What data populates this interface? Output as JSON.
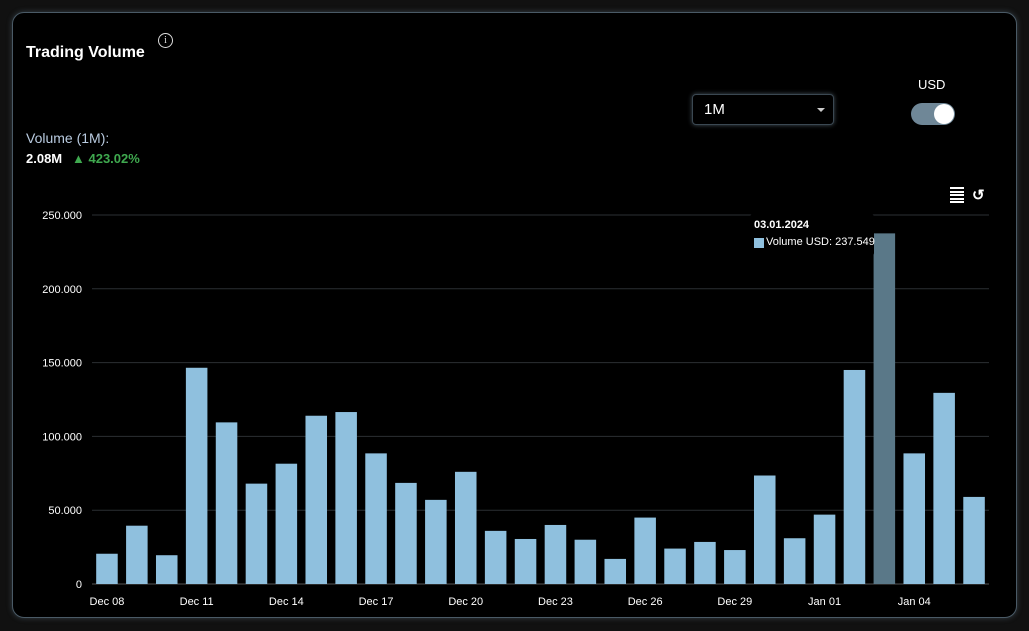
{
  "header": {
    "title": "Trading Volume",
    "info_icon": "info-icon",
    "volume_label": "Volume (1M):",
    "volume_value": "2.08M",
    "volume_change": "▲ 423.02%"
  },
  "controls": {
    "range_selected": "1M",
    "usd_label": "USD",
    "usd_toggle_on": true
  },
  "toolbar": {
    "menu_icon": "menu-icon",
    "reset_icon": "reset-icon",
    "reset_glyph": "↺"
  },
  "tooltip": {
    "date": "03.01.2024",
    "text": "Volume USD: 237.549"
  },
  "colors": {
    "bar": "#8fc0de",
    "bar_highlight": "#5a7888",
    "grid": "#2b2f33",
    "axis_text": "#ffffff",
    "positive": "#3fa94f"
  },
  "chart_data": {
    "type": "bar",
    "title": "Trading Volume",
    "ylim": [
      0,
      250000
    ],
    "yticks": [
      "0",
      "50.000",
      "100.000",
      "150.000",
      "200.000",
      "250.000"
    ],
    "ytick_values": [
      0,
      50000,
      100000,
      150000,
      200000,
      250000
    ],
    "xtick_labels": [
      "Dec 08",
      "Dec 11",
      "Dec 14",
      "Dec 17",
      "Dec 20",
      "Dec 23",
      "Dec 26",
      "Dec 29",
      "Jan 01",
      "Jan 04"
    ],
    "xtick_indices": [
      0,
      3,
      6,
      9,
      12,
      15,
      18,
      21,
      24,
      27
    ],
    "highlighted_index": 26,
    "series": [
      {
        "name": "Volume USD",
        "values": [
          20500,
          39500,
          19500,
          146500,
          109500,
          68000,
          81500,
          114000,
          116500,
          88500,
          68500,
          57000,
          76000,
          36000,
          30500,
          40000,
          30000,
          17000,
          45000,
          24000,
          28500,
          23000,
          73500,
          31000,
          47000,
          145000,
          237549,
          88500,
          129500,
          59000
        ]
      }
    ]
  }
}
